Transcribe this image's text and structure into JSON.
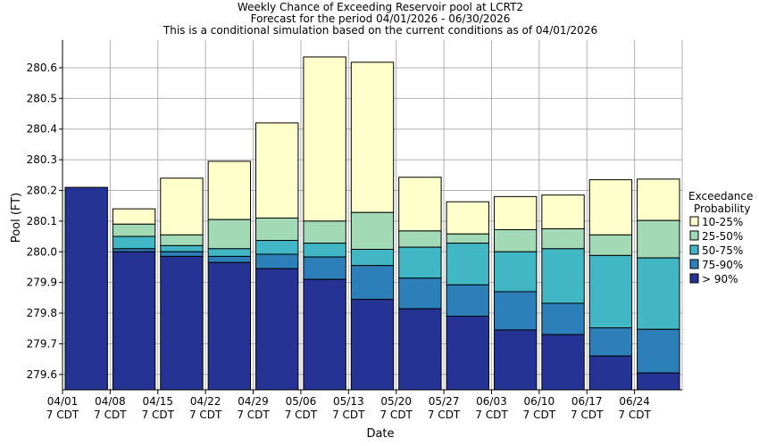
{
  "chart_data": {
    "type": "bar",
    "stacked": true,
    "title": [
      "Weekly Chance of Exceeding Reservoir pool at LCRT2",
      "Forecast for the period 04/01/2026 - 06/30/2026",
      "This is a conditional simulation based on the current conditions as of 04/01/2026"
    ],
    "xlabel": "Date",
    "ylabel": "Pool (FT)",
    "ylim": [
      279.55,
      280.69
    ],
    "yticks": [
      279.6,
      279.7,
      279.8,
      279.9,
      280.0,
      280.1,
      280.2,
      280.3,
      280.4,
      280.5,
      280.6
    ],
    "ytick_labels": [
      "279.6",
      "279.7",
      "279.8",
      "279.9",
      "280.0",
      "280.1",
      "280.2",
      "280.3",
      "280.4",
      "280.5",
      "280.6"
    ],
    "x_tick_labels": [
      [
        "04/01",
        "7 CDT"
      ],
      [
        "04/08",
        "7 CDT"
      ],
      [
        "04/15",
        "7 CDT"
      ],
      [
        "04/22",
        "7 CDT"
      ],
      [
        "04/29",
        "7 CDT"
      ],
      [
        "05/06",
        "7 CDT"
      ],
      [
        "05/13",
        "7 CDT"
      ],
      [
        "05/20",
        "7 CDT"
      ],
      [
        "05/27",
        "7 CDT"
      ],
      [
        "06/03",
        "7 CDT"
      ],
      [
        "06/10",
        "7 CDT"
      ],
      [
        "06/17",
        "7 CDT"
      ],
      [
        "06/24",
        "7 CDT"
      ]
    ],
    "grid": true,
    "legend": {
      "title": [
        "Exceedance",
        "Probability"
      ],
      "placement": "right",
      "entries": [
        {
          "label": "10-25%",
          "color": "#ffffcc"
        },
        {
          "label": "25-50%",
          "color": "#a1dab4"
        },
        {
          "label": "50-75%",
          "color": "#41b6c4"
        },
        {
          "label": "75-90%",
          "color": "#2c7fb8"
        },
        {
          "label": "> 90%",
          "color": "#253494"
        }
      ]
    },
    "bars": [
      {
        "week": "04/01",
        "levels": [
          280.21,
          280.21,
          280.21,
          280.21,
          280.21
        ]
      },
      {
        "week": "04/08",
        "levels": [
          280.14,
          280.09,
          280.05,
          280.01,
          280.0
        ]
      },
      {
        "week": "04/15",
        "levels": [
          280.24,
          280.055,
          280.02,
          280.0,
          279.985
        ]
      },
      {
        "week": "04/22",
        "levels": [
          280.295,
          280.105,
          280.01,
          279.985,
          279.965
        ]
      },
      {
        "week": "04/29",
        "levels": [
          280.42,
          280.11,
          280.037,
          279.992,
          279.945
        ]
      },
      {
        "week": "05/06",
        "levels": [
          280.635,
          280.1,
          280.028,
          279.983,
          279.91
        ]
      },
      {
        "week": "05/13",
        "levels": [
          280.618,
          280.128,
          280.008,
          279.955,
          279.845
        ]
      },
      {
        "week": "05/20",
        "levels": [
          280.243,
          280.068,
          280.015,
          279.914,
          279.814
        ]
      },
      {
        "week": "05/27",
        "levels": [
          280.163,
          280.058,
          280.028,
          279.892,
          279.79
        ]
      },
      {
        "week": "06/03",
        "levels": [
          280.18,
          280.072,
          280.0,
          279.87,
          279.745
        ]
      },
      {
        "week": "06/10",
        "levels": [
          280.185,
          280.075,
          280.01,
          279.832,
          279.73
        ]
      },
      {
        "week": "06/17",
        "levels": [
          280.235,
          280.055,
          279.988,
          279.752,
          279.66
        ]
      },
      {
        "week": "06/24",
        "levels": [
          280.237,
          280.102,
          279.98,
          279.747,
          279.605
        ]
      }
    ],
    "colors": {
      "plot_background": "#ffffff",
      "grid": "#b0b0b0",
      "outline": "#000000"
    }
  }
}
